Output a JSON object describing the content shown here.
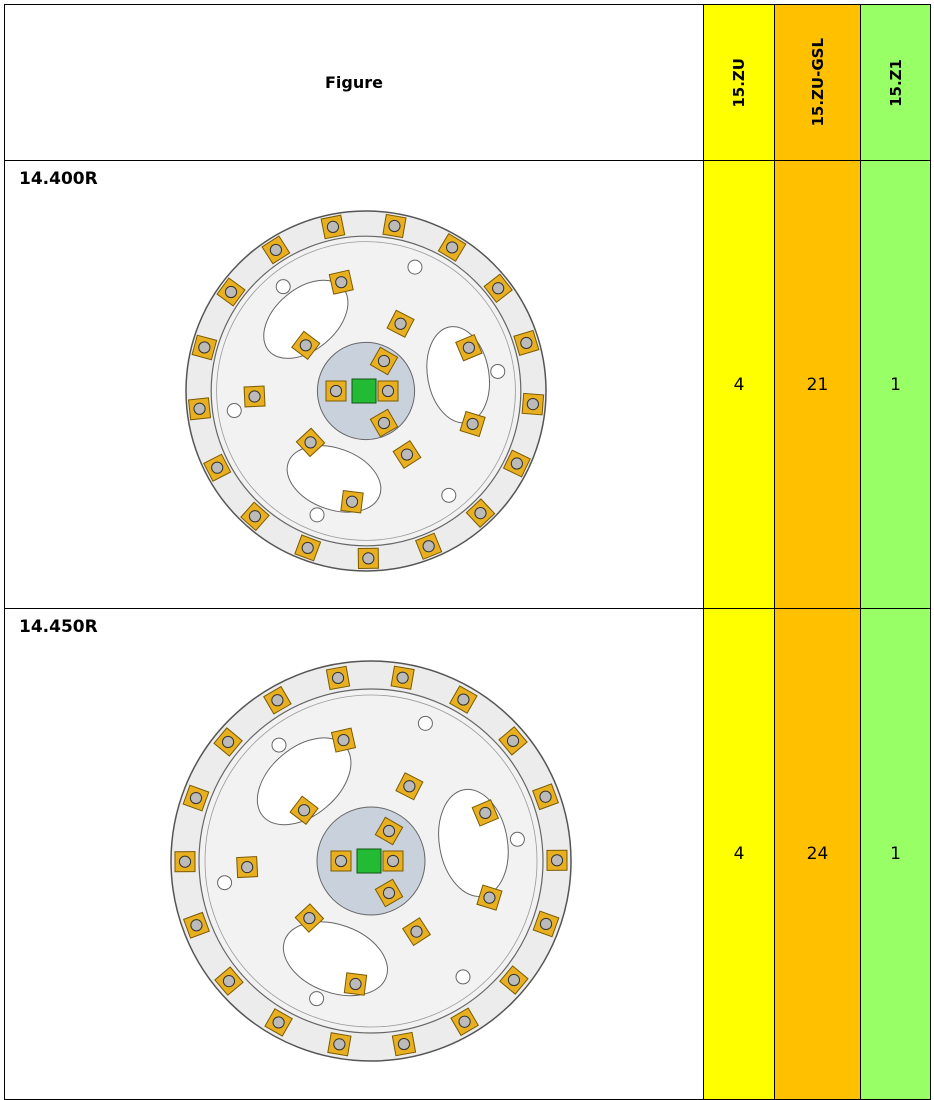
{
  "table": {
    "header": [
      "Figure",
      "15.ZU",
      "15.ZU-GSL",
      "15.Z1"
    ],
    "rows": [
      [
        "14.400R",
        "4",
        "21",
        "1"
      ],
      [
        "14.450R",
        "4",
        "24",
        "1"
      ]
    ]
  }
}
